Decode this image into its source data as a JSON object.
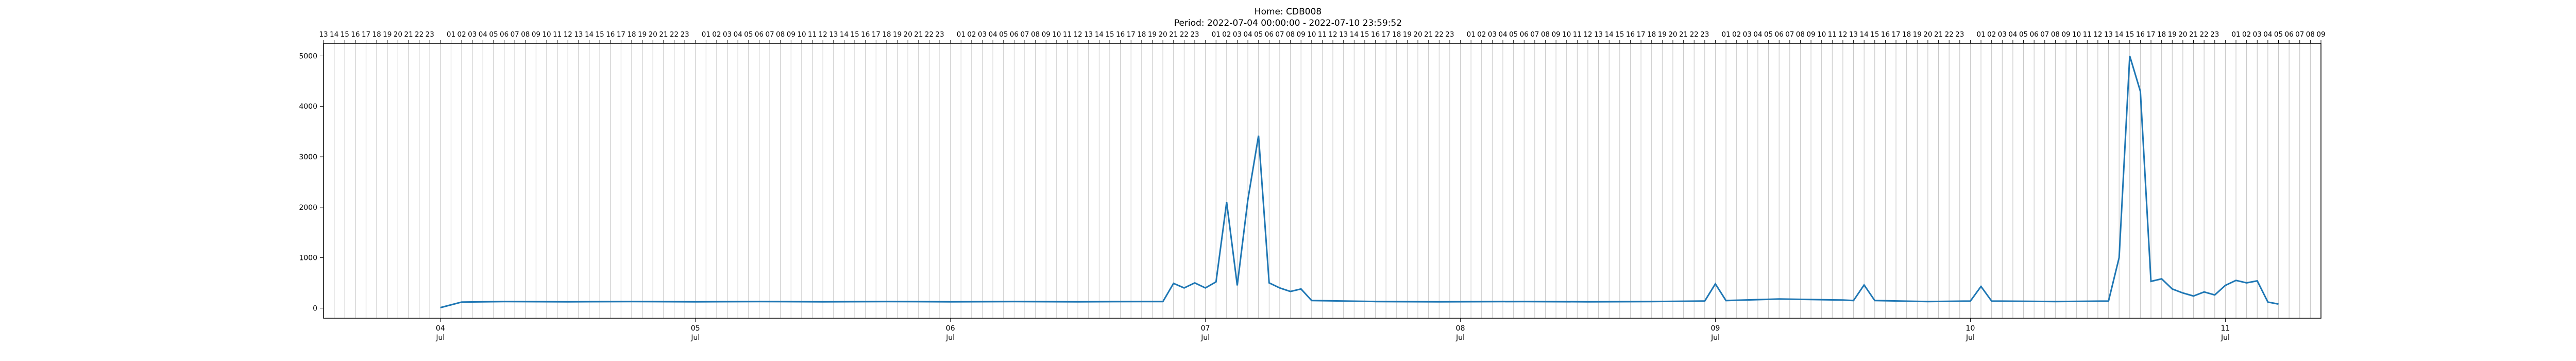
{
  "chart_data": {
    "type": "line",
    "title": "Home: CDB008",
    "subtitle": "Period: 2022-07-04 00:00:00 - 2022-07-10 23:59:52",
    "xlabel": "",
    "ylabel": "",
    "x_range": [
      "2022-07-03T13:00",
      "2022-07-11T09:00"
    ],
    "ylim": [
      -200,
      5250
    ],
    "y_ticks": [
      0,
      1000,
      2000,
      3000,
      4000,
      5000
    ],
    "x_major_ticks": [
      {
        "date": "2022-07-04",
        "day": "04",
        "month": "Jul"
      },
      {
        "date": "2022-07-05",
        "day": "05",
        "month": "Jul"
      },
      {
        "date": "2022-07-06",
        "day": "06",
        "month": "Jul"
      },
      {
        "date": "2022-07-07",
        "day": "07",
        "month": "Jul"
      },
      {
        "date": "2022-07-08",
        "day": "08",
        "month": "Jul"
      },
      {
        "date": "2022-07-09",
        "day": "09",
        "month": "Jul"
      },
      {
        "date": "2022-07-10",
        "day": "10",
        "month": "Jul"
      },
      {
        "date": "2022-07-11",
        "day": "11",
        "month": "Jul"
      }
    ],
    "top_axis": "hour of day",
    "grid": "vertical hourly lines",
    "series": [
      {
        "color": "#1f77b4",
        "points": [
          [
            "2022-07-04T00:00",
            10
          ],
          [
            "2022-07-04T02:00",
            120
          ],
          [
            "2022-07-04T06:00",
            130
          ],
          [
            "2022-07-04T12:00",
            125
          ],
          [
            "2022-07-04T18:00",
            130
          ],
          [
            "2022-07-05T00:00",
            125
          ],
          [
            "2022-07-05T06:00",
            130
          ],
          [
            "2022-07-05T12:00",
            125
          ],
          [
            "2022-07-05T18:00",
            130
          ],
          [
            "2022-07-06T00:00",
            125
          ],
          [
            "2022-07-06T06:00",
            130
          ],
          [
            "2022-07-06T12:00",
            125
          ],
          [
            "2022-07-06T18:00",
            130
          ],
          [
            "2022-07-06T20:00",
            130
          ],
          [
            "2022-07-06T21:00",
            490
          ],
          [
            "2022-07-06T22:00",
            400
          ],
          [
            "2022-07-06T23:00",
            500
          ],
          [
            "2022-07-07T00:00",
            400
          ],
          [
            "2022-07-07T01:00",
            520
          ],
          [
            "2022-07-07T02:00",
            2100
          ],
          [
            "2022-07-07T03:00",
            450
          ],
          [
            "2022-07-07T04:00",
            2150
          ],
          [
            "2022-07-07T05:00",
            3420
          ],
          [
            "2022-07-07T06:00",
            500
          ],
          [
            "2022-07-07T07:00",
            400
          ],
          [
            "2022-07-07T08:00",
            330
          ],
          [
            "2022-07-07T09:00",
            380
          ],
          [
            "2022-07-07T10:00",
            150
          ],
          [
            "2022-07-07T16:00",
            130
          ],
          [
            "2022-07-07T22:00",
            125
          ],
          [
            "2022-07-08T06:00",
            130
          ],
          [
            "2022-07-08T12:00",
            125
          ],
          [
            "2022-07-08T18:00",
            130
          ],
          [
            "2022-07-08T23:00",
            140
          ],
          [
            "2022-07-09T00:00",
            480
          ],
          [
            "2022-07-09T01:00",
            150
          ],
          [
            "2022-07-09T06:00",
            180
          ],
          [
            "2022-07-09T12:00",
            160
          ],
          [
            "2022-07-09T13:00",
            150
          ],
          [
            "2022-07-09T14:00",
            460
          ],
          [
            "2022-07-09T15:00",
            150
          ],
          [
            "2022-07-09T20:00",
            130
          ],
          [
            "2022-07-10T00:00",
            140
          ],
          [
            "2022-07-10T01:00",
            430
          ],
          [
            "2022-07-10T02:00",
            140
          ],
          [
            "2022-07-10T08:00",
            130
          ],
          [
            "2022-07-10T13:00",
            140
          ],
          [
            "2022-07-10T14:00",
            1000
          ],
          [
            "2022-07-10T15:00",
            5000
          ],
          [
            "2022-07-10T16:00",
            4300
          ],
          [
            "2022-07-10T17:00",
            530
          ],
          [
            "2022-07-10T18:00",
            580
          ],
          [
            "2022-07-10T19:00",
            380
          ],
          [
            "2022-07-10T20:00",
            300
          ],
          [
            "2022-07-10T21:00",
            240
          ],
          [
            "2022-07-10T22:00",
            320
          ],
          [
            "2022-07-10T23:00",
            260
          ],
          [
            "2022-07-11T00:00",
            450
          ],
          [
            "2022-07-11T01:00",
            550
          ],
          [
            "2022-07-11T02:00",
            500
          ],
          [
            "2022-07-11T03:00",
            540
          ],
          [
            "2022-07-11T04:00",
            120
          ],
          [
            "2022-07-11T05:00",
            80
          ]
        ]
      }
    ]
  }
}
